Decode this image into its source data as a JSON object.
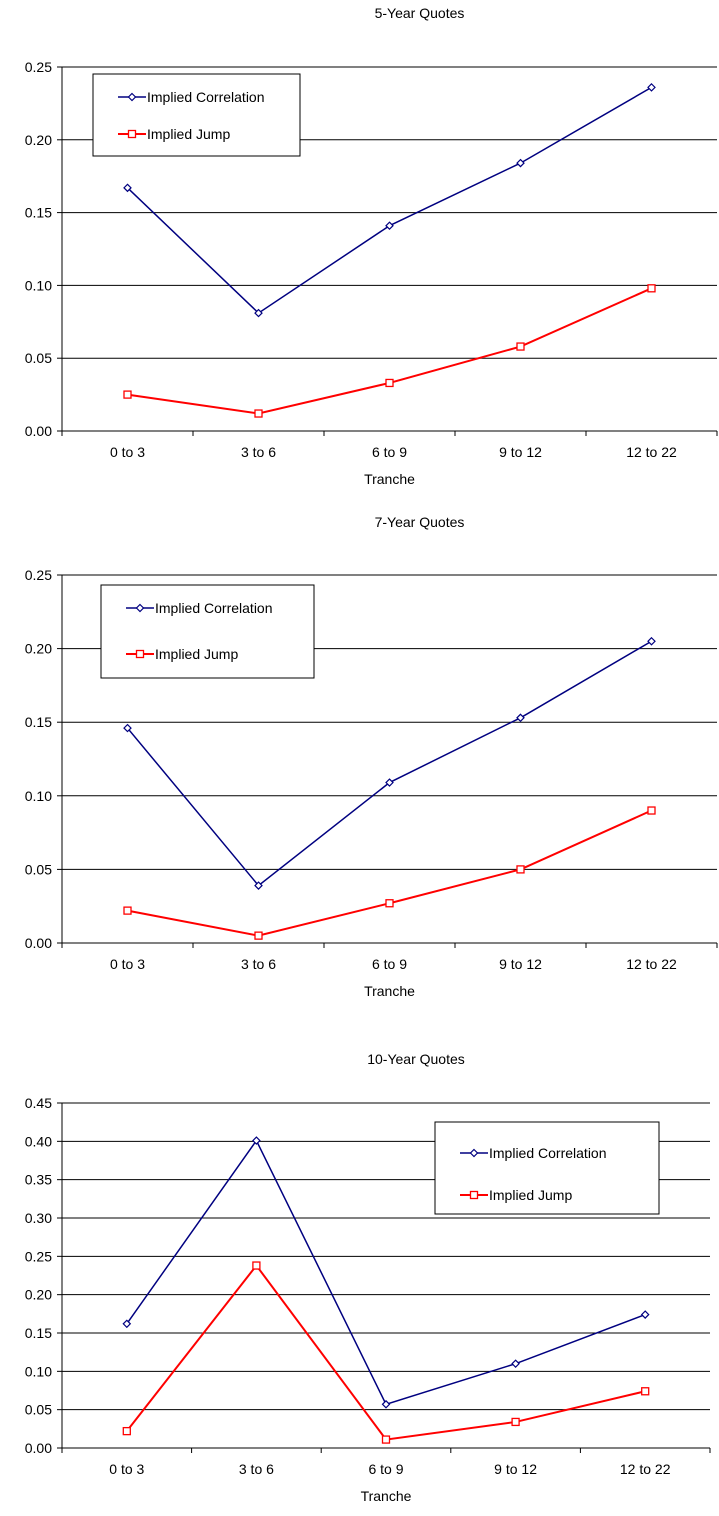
{
  "chart_data": [
    {
      "type": "line",
      "title": "5-Year Quotes",
      "xlabel": "Tranche",
      "ylabel": "",
      "categories": [
        "0 to 3",
        "3 to 6",
        "6 to 9",
        "9 to 12",
        "12 to 22"
      ],
      "ylim": [
        0,
        0.25
      ],
      "yticks": [
        "0.00",
        "0.05",
        "0.10",
        "0.15",
        "0.20",
        "0.25"
      ],
      "grid": true,
      "legend_position": "top-left",
      "series": [
        {
          "name": "Implied Correlation",
          "color": "#000080",
          "marker": "diamond",
          "values": [
            0.167,
            0.081,
            0.141,
            0.184,
            0.236
          ]
        },
        {
          "name": "Implied Jump",
          "color": "#ff0000",
          "marker": "square",
          "values": [
            0.025,
            0.012,
            0.033,
            0.058,
            0.098
          ]
        }
      ]
    },
    {
      "type": "line",
      "title": "7-Year Quotes",
      "xlabel": "Tranche",
      "ylabel": "",
      "categories": [
        "0 to 3",
        "3 to 6",
        "6 to 9",
        "9 to 12",
        "12 to 22"
      ],
      "ylim": [
        0,
        0.25
      ],
      "yticks": [
        "0.00",
        "0.05",
        "0.10",
        "0.15",
        "0.20",
        "0.25"
      ],
      "grid": true,
      "legend_position": "top-left",
      "series": [
        {
          "name": "Implied Correlation",
          "color": "#000080",
          "marker": "diamond",
          "values": [
            0.146,
            0.039,
            0.109,
            0.153,
            0.205
          ]
        },
        {
          "name": "Implied Jump",
          "color": "#ff0000",
          "marker": "square",
          "values": [
            0.022,
            0.005,
            0.027,
            0.05,
            0.09
          ]
        }
      ]
    },
    {
      "type": "line",
      "title": "10-Year Quotes",
      "xlabel": "Tranche",
      "ylabel": "",
      "categories": [
        "0 to 3",
        "3 to 6",
        "6 to 9",
        "9 to 12",
        "12 to 22"
      ],
      "ylim": [
        0,
        0.45
      ],
      "yticks": [
        "0.00",
        "0.05",
        "0.10",
        "0.15",
        "0.20",
        "0.25",
        "0.30",
        "0.35",
        "0.40",
        "0.45"
      ],
      "grid": true,
      "legend_position": "top-right",
      "series": [
        {
          "name": "Implied Correlation",
          "color": "#000080",
          "marker": "diamond",
          "values": [
            0.162,
            0.401,
            0.057,
            0.11,
            0.174
          ]
        },
        {
          "name": "Implied Jump",
          "color": "#ff0000",
          "marker": "square",
          "values": [
            0.022,
            0.238,
            0.011,
            0.034,
            0.074
          ]
        }
      ]
    }
  ]
}
